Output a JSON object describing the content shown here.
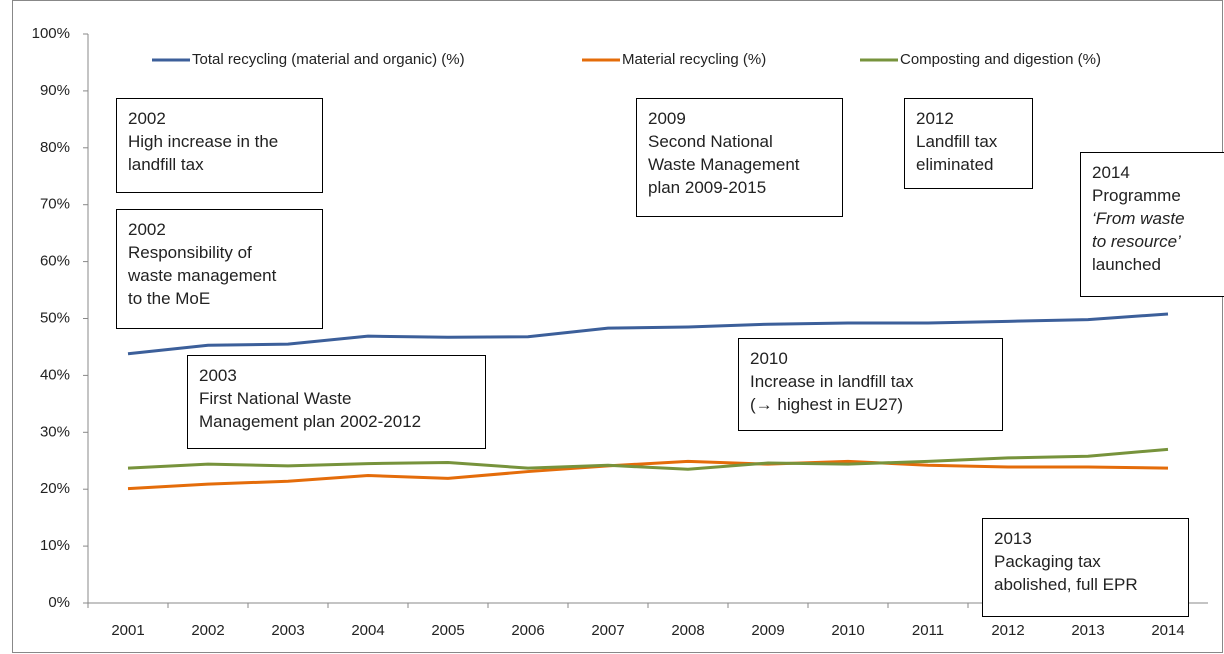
{
  "chart_data": {
    "type": "line",
    "categories": [
      "2001",
      "2002",
      "2003",
      "2004",
      "2005",
      "2006",
      "2007",
      "2008",
      "2009",
      "2010",
      "2011",
      "2012",
      "2013",
      "2014"
    ],
    "series": [
      {
        "name": "Total recycling (material and organic) (%)",
        "color": "#3c5f9a",
        "values": [
          43.8,
          45.3,
          45.5,
          46.9,
          46.7,
          46.8,
          48.3,
          48.5,
          49.0,
          49.2,
          49.2,
          49.5,
          49.8,
          50.8
        ]
      },
      {
        "name": "Material recycling (%)",
        "color": "#e46c0a",
        "values": [
          20.1,
          20.9,
          21.4,
          22.4,
          21.9,
          23.1,
          24.1,
          24.9,
          24.4,
          24.9,
          24.2,
          23.9,
          23.9,
          23.7
        ]
      },
      {
        "name": "Composting and digestion (%)",
        "color": "#77933c",
        "values": [
          23.7,
          24.4,
          24.1,
          24.5,
          24.7,
          23.7,
          24.2,
          23.5,
          24.6,
          24.4,
          24.9,
          25.5,
          25.8,
          27.0
        ]
      }
    ],
    "ylim": [
      0,
      100
    ],
    "yticks": [
      {
        "value": 0,
        "label": "0%"
      },
      {
        "value": 10,
        "label": "10%"
      },
      {
        "value": 20,
        "label": "20%"
      },
      {
        "value": 30,
        "label": "30%"
      },
      {
        "value": 40,
        "label": "40%"
      },
      {
        "value": 50,
        "label": "50%"
      },
      {
        "value": 60,
        "label": "60%"
      },
      {
        "value": 70,
        "label": "70%"
      },
      {
        "value": 80,
        "label": "80%"
      },
      {
        "value": 90,
        "label": "90%"
      },
      {
        "value": 100,
        "label": "100%"
      }
    ],
    "legend": "top",
    "annotations": [
      {
        "lines": [
          "2002",
          "High increase in the",
          "landfill tax"
        ]
      },
      {
        "lines": [
          "2002",
          "Responsibility of",
          "waste management",
          "to the MoE"
        ]
      },
      {
        "lines": [
          "2003",
          "First National Waste",
          "Management plan 2002-2012"
        ]
      },
      {
        "lines": [
          "2009",
          "Second National",
          "Waste Management",
          "plan 2009-2015"
        ]
      },
      {
        "lines": [
          "2010",
          "Increase in landfill tax",
          "(→ highest in EU27)"
        ]
      },
      {
        "lines": [
          "2012",
          "Landfill tax",
          "eliminated"
        ]
      },
      {
        "lines": [
          "2014",
          "Programme",
          "‘From waste",
          "to resource’",
          "launched"
        ]
      },
      {
        "lines": [
          "2013",
          "Packaging tax",
          "abolished, full EPR"
        ]
      }
    ]
  }
}
